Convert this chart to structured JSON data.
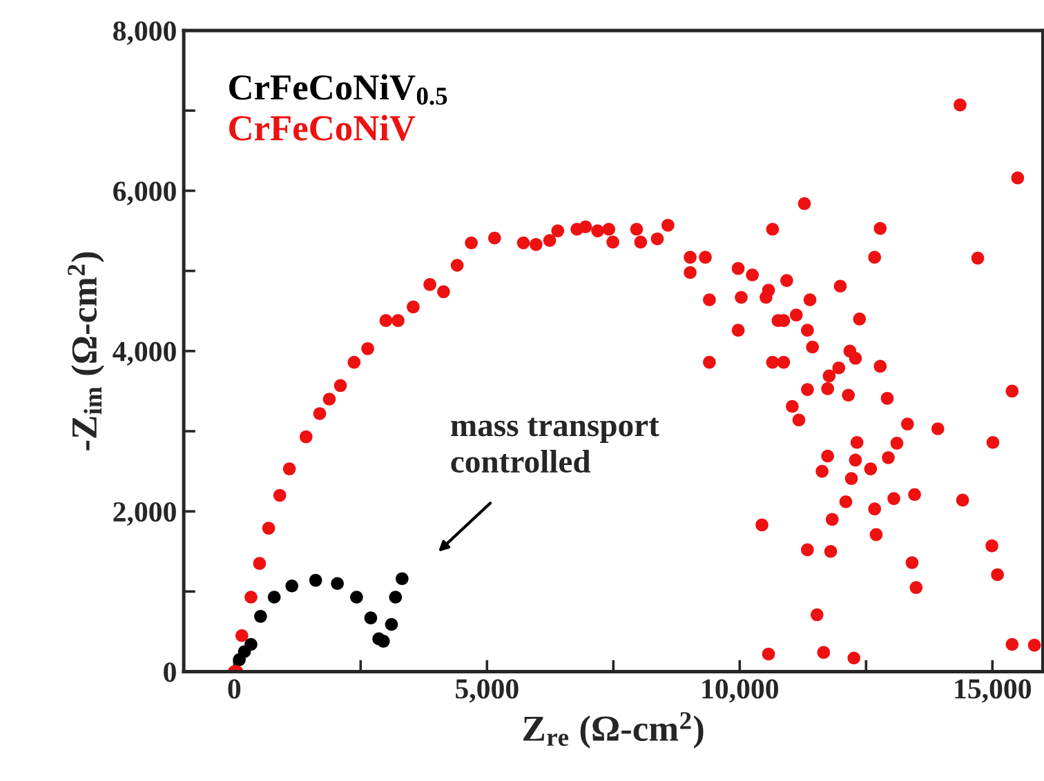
{
  "chart_data": {
    "type": "scatter",
    "xlabel": "Z$_{re}$ (Ω-cm$^{2}$)",
    "ylabel": "-Z$_{im}$ (Ω-cm$^{2}$)",
    "xlim": [
      -1000,
      16000
    ],
    "ylim": [
      0,
      8000
    ],
    "xticks": [
      {
        "value": 0,
        "label": "0"
      },
      {
        "value": 2500,
        "label": null
      },
      {
        "value": 5000,
        "label": "5,000"
      },
      {
        "value": 7500,
        "label": null
      },
      {
        "value": 10000,
        "label": "10,000"
      },
      {
        "value": 12500,
        "label": null
      },
      {
        "value": 15000,
        "label": "15,000"
      }
    ],
    "yticks": [
      {
        "value": 0,
        "label": "0"
      },
      {
        "value": 1000,
        "label": null
      },
      {
        "value": 2000,
        "label": "2,000"
      },
      {
        "value": 3000,
        "label": null
      },
      {
        "value": 4000,
        "label": "4,000"
      },
      {
        "value": 5000,
        "label": null
      },
      {
        "value": 6000,
        "label": "6,000"
      },
      {
        "value": 7000,
        "label": null
      },
      {
        "value": 8000,
        "label": "8,000"
      }
    ],
    "grid": false,
    "legend": "top left",
    "marker": "circle",
    "annotations": [
      "mass transport\ncontrolled"
    ],
    "series": [
      {
        "name": "CrFeCoNiV$_{0.5}$",
        "color": "#000000",
        "x": [
          100,
          200,
          330,
          520,
          790,
          1140,
          1610,
          2040,
          2420,
          2700,
          2860,
          2950,
          3110,
          3190,
          3320
        ],
        "values": [
          150,
          250,
          340,
          690,
          930,
          1070,
          1140,
          1100,
          930,
          670,
          410,
          380,
          590,
          930,
          1160
        ]
      },
      {
        "name": "CrFeCoNiV",
        "color": "#ee1111",
        "x": [
          0,
          50,
          150,
          330,
          500,
          680,
          900,
          1090,
          1420,
          1690,
          1880,
          2100,
          2370,
          2640,
          3000,
          3240,
          3540,
          3870,
          4140,
          4410,
          4690,
          5150,
          5720,
          5970,
          6240,
          6400,
          6780,
          6950,
          7190,
          7410,
          7490,
          7960,
          8040,
          8370,
          8580,
          9020,
          9020,
          9320,
          9400,
          9400,
          9970,
          10030,
          9970,
          10250,
          10650,
          10570,
          10520,
          10930,
          10760,
          10870,
          11120,
          11280,
          11390,
          11340,
          11440,
          10650,
          10870,
          11990,
          12370,
          12180,
          12290,
          11960,
          11770,
          11740,
          11340,
          11040,
          11170,
          12150,
          12780,
          12670,
          12780,
          12920,
          13320,
          13920,
          13110,
          12940,
          12320,
          12290,
          12590,
          11740,
          11630,
          12210,
          13050,
          13460,
          12100,
          12670,
          11830,
          12700,
          10440,
          11340,
          11800,
          13410,
          13490,
          11530,
          10570,
          11660,
          12260,
          14360,
          15500,
          14710,
          15390,
          15010,
          14410,
          14990,
          15100,
          15390,
          15830
        ],
        "values": [
          0,
          0,
          450,
          930,
          1350,
          1790,
          2200,
          2530,
          2930,
          3220,
          3400,
          3570,
          3860,
          4030,
          4380,
          4380,
          4550,
          4830,
          4740,
          5070,
          5350,
          5410,
          5350,
          5330,
          5380,
          5500,
          5520,
          5550,
          5500,
          5520,
          5360,
          5520,
          5360,
          5400,
          5570,
          5170,
          4980,
          5170,
          4640,
          3860,
          5030,
          4670,
          4260,
          4950,
          5520,
          4760,
          4670,
          4880,
          4380,
          4380,
          4450,
          5840,
          4640,
          4260,
          4050,
          3860,
          3860,
          4810,
          4400,
          4000,
          3910,
          3790,
          3690,
          3530,
          3520,
          3310,
          3140,
          3450,
          5530,
          5170,
          3810,
          3410,
          3090,
          3030,
          2850,
          2670,
          2860,
          2640,
          2530,
          2690,
          2500,
          2410,
          2160,
          2210,
          2120,
          2030,
          1900,
          1710,
          1830,
          1520,
          1500,
          1360,
          1050,
          710,
          220,
          240,
          170,
          7070,
          6160,
          5160,
          3500,
          2860,
          2140,
          1570,
          1210,
          340,
          330
        ]
      }
    ]
  }
}
